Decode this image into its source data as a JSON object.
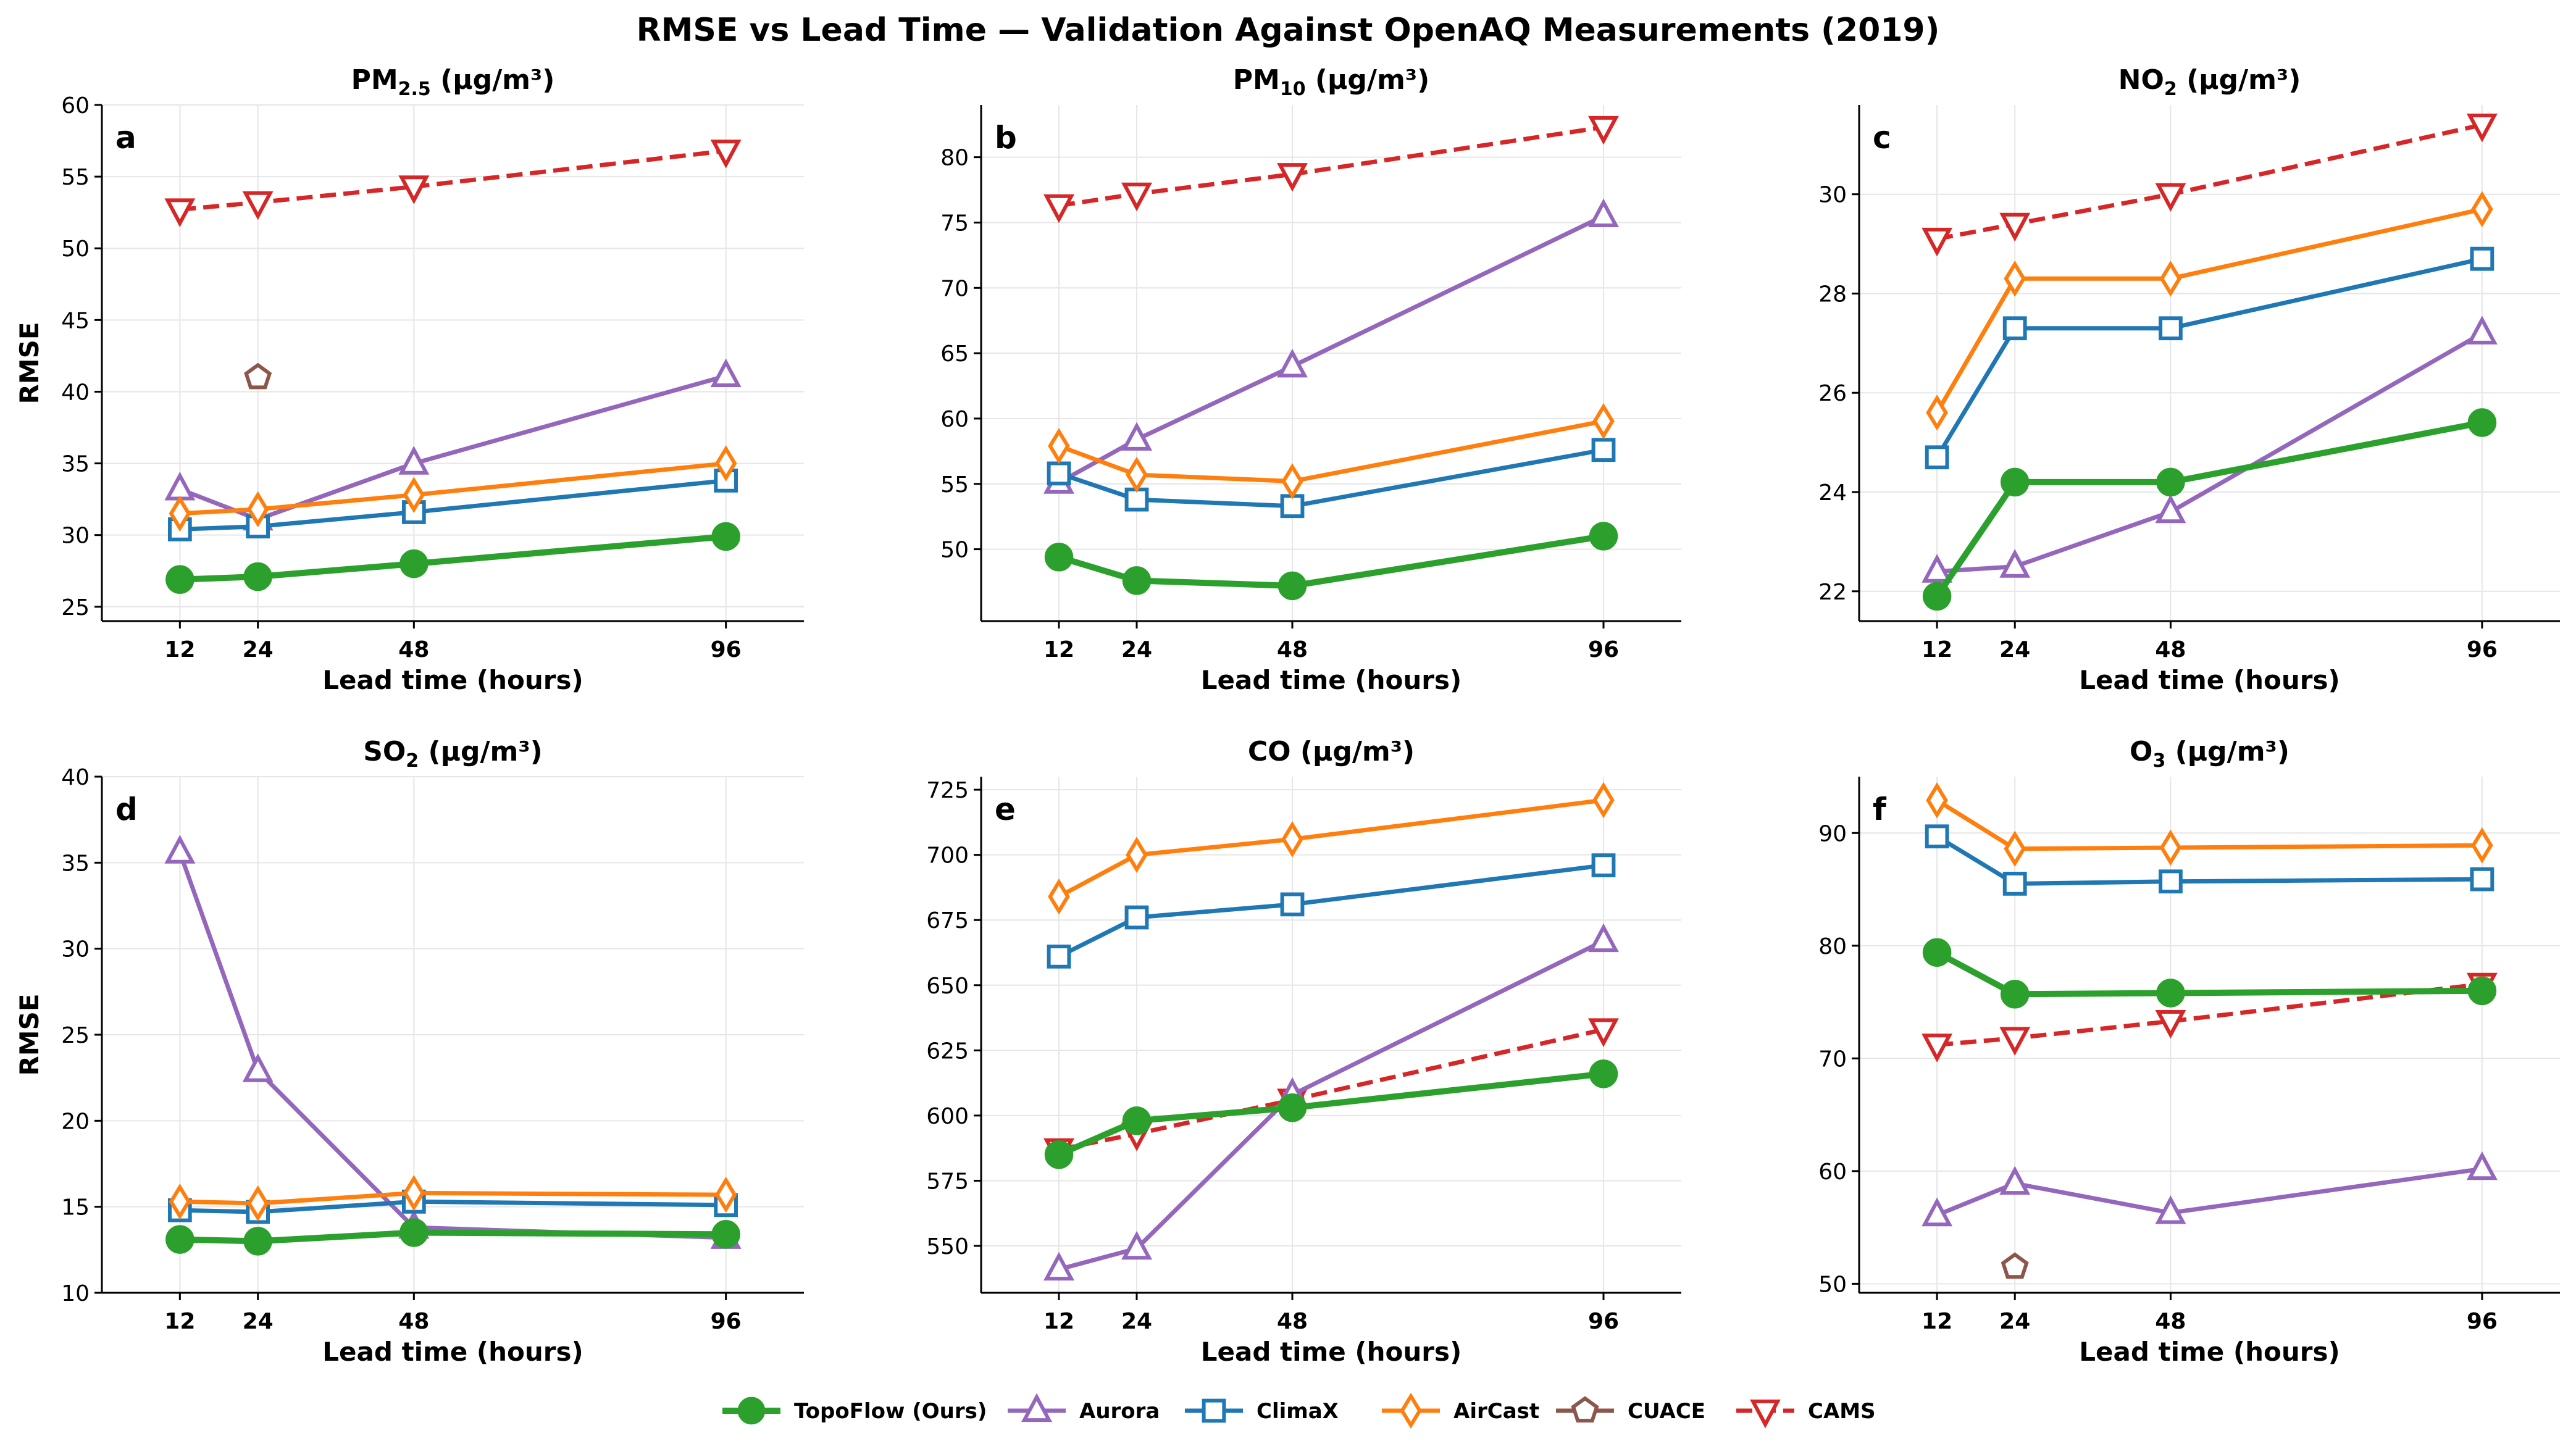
{
  "figure": {
    "title": "RMSE vs Lead Time — Validation Against OpenAQ Measurements (2019)"
  },
  "legend": {
    "entries": [
      {
        "key": "topoflow",
        "label": "TopoFlow (Ours)"
      },
      {
        "key": "aurora",
        "label": "Aurora"
      },
      {
        "key": "climax",
        "label": "ClimaX"
      },
      {
        "key": "aircast",
        "label": "AirCast"
      },
      {
        "key": "cuace",
        "label": "CUACE"
      },
      {
        "key": "cams",
        "label": "CAMS"
      }
    ]
  },
  "styles": {
    "topoflow": {
      "color": "#2ca02c",
      "marker": "circle",
      "dashed": false,
      "filled": true
    },
    "aurora": {
      "color": "#9467bd",
      "marker": "triangle-up",
      "dashed": false,
      "filled": false
    },
    "climax": {
      "color": "#1f77b4",
      "marker": "square",
      "dashed": false,
      "filled": false
    },
    "aircast": {
      "color": "#ff7f0e",
      "marker": "diamond",
      "dashed": false,
      "filled": false
    },
    "cuace": {
      "color": "#8c564b",
      "marker": "pentagon",
      "dashed": false,
      "filled": false
    },
    "cams": {
      "color": "#d62728",
      "marker": "triangle-down",
      "dashed": true,
      "filled": false
    }
  },
  "chart_data": [
    {
      "type": "line",
      "panel": "a",
      "title": {
        "base": "PM",
        "sub": "2.5",
        "unit": " (µg/m³)"
      },
      "xlabel": "Lead time (hours)",
      "ylabel": "RMSE",
      "x": [
        12,
        24,
        48,
        96
      ],
      "xlim": [
        0,
        108
      ],
      "ylim": [
        24,
        60
      ],
      "yticks": [
        25,
        30,
        35,
        40,
        45,
        50,
        55,
        60
      ],
      "series": [
        {
          "key": "topoflow",
          "name": "TopoFlow (Ours)",
          "x": [
            12,
            24,
            48,
            96
          ],
          "values": [
            26.9,
            27.1,
            28.0,
            29.9
          ]
        },
        {
          "key": "aurora",
          "name": "Aurora",
          "x": [
            12,
            24,
            48,
            96
          ],
          "values": [
            33.2,
            31.1,
            35.0,
            41.1
          ]
        },
        {
          "key": "climax",
          "name": "ClimaX",
          "x": [
            12,
            24,
            48,
            96
          ],
          "values": [
            30.4,
            30.6,
            31.6,
            33.8
          ]
        },
        {
          "key": "aircast",
          "name": "AirCast",
          "x": [
            12,
            24,
            48,
            96
          ],
          "values": [
            31.5,
            31.8,
            32.8,
            35.0
          ]
        },
        {
          "key": "cuace",
          "name": "CUACE",
          "x": [
            24
          ],
          "values": [
            41.0
          ]
        },
        {
          "key": "cams",
          "name": "CAMS",
          "x": [
            12,
            24,
            48,
            96
          ],
          "values": [
            52.7,
            53.2,
            54.3,
            56.8
          ]
        }
      ]
    },
    {
      "type": "line",
      "panel": "b",
      "title": {
        "base": "PM",
        "sub": "10",
        "unit": " (µg/m³)"
      },
      "xlabel": "Lead time (hours)",
      "ylabel": "",
      "x": [
        12,
        24,
        48,
        96
      ],
      "xlim": [
        0,
        108
      ],
      "ylim": [
        44.5,
        84
      ],
      "yticks": [
        50,
        55,
        60,
        65,
        70,
        75,
        80
      ],
      "series": [
        {
          "key": "topoflow",
          "name": "TopoFlow (Ours)",
          "x": [
            12,
            24,
            48,
            96
          ],
          "values": [
            49.4,
            47.6,
            47.2,
            51.0
          ]
        },
        {
          "key": "aurora",
          "name": "Aurora",
          "x": [
            12,
            24,
            48,
            96
          ],
          "values": [
            55.1,
            58.4,
            64.0,
            75.5
          ]
        },
        {
          "key": "climax",
          "name": "ClimaX",
          "x": [
            12,
            24,
            48,
            96
          ],
          "values": [
            55.8,
            53.8,
            53.3,
            57.6
          ]
        },
        {
          "key": "aircast",
          "name": "AirCast",
          "x": [
            12,
            24,
            48,
            96
          ],
          "values": [
            57.9,
            55.7,
            55.2,
            59.8
          ]
        },
        {
          "key": "cams",
          "name": "CAMS",
          "x": [
            12,
            24,
            48,
            96
          ],
          "values": [
            76.3,
            77.2,
            78.7,
            82.3
          ]
        }
      ]
    },
    {
      "type": "line",
      "panel": "c",
      "title": {
        "base": "NO",
        "sub": "2",
        "unit": " (µg/m³)"
      },
      "xlabel": "Lead time (hours)",
      "ylabel": "",
      "x": [
        12,
        24,
        48,
        96
      ],
      "xlim": [
        0,
        108
      ],
      "ylim": [
        21.4,
        31.8
      ],
      "yticks": [
        22,
        24,
        26,
        28,
        30
      ],
      "series": [
        {
          "key": "topoflow",
          "name": "TopoFlow (Ours)",
          "x": [
            12,
            24,
            48,
            96
          ],
          "values": [
            21.9,
            24.2,
            24.2,
            25.4
          ]
        },
        {
          "key": "aurora",
          "name": "Aurora",
          "x": [
            12,
            24,
            48,
            96
          ],
          "values": [
            22.4,
            22.5,
            23.6,
            27.2
          ]
        },
        {
          "key": "climax",
          "name": "ClimaX",
          "x": [
            12,
            24,
            48,
            96
          ],
          "values": [
            24.7,
            27.3,
            27.3,
            28.7
          ]
        },
        {
          "key": "aircast",
          "name": "AirCast",
          "x": [
            12,
            24,
            48,
            96
          ],
          "values": [
            25.6,
            28.3,
            28.3,
            29.7
          ]
        },
        {
          "key": "cams",
          "name": "CAMS",
          "x": [
            12,
            24,
            48,
            96
          ],
          "values": [
            29.1,
            29.4,
            30.0,
            31.4
          ]
        }
      ]
    },
    {
      "type": "line",
      "panel": "d",
      "title": {
        "base": "SO",
        "sub": "2",
        "unit": " (µg/m³)"
      },
      "xlabel": "Lead time (hours)",
      "ylabel": "RMSE",
      "x": [
        12,
        24,
        48,
        96
      ],
      "xlim": [
        0,
        108
      ],
      "ylim": [
        10,
        40
      ],
      "yticks": [
        10,
        15,
        20,
        25,
        30,
        35,
        40
      ],
      "series": [
        {
          "key": "topoflow",
          "name": "TopoFlow (Ours)",
          "x": [
            12,
            24,
            48,
            96
          ],
          "values": [
            13.1,
            13.0,
            13.5,
            13.4
          ]
        },
        {
          "key": "aurora",
          "name": "Aurora",
          "x": [
            12,
            24,
            48,
            96
          ],
          "values": [
            35.6,
            22.9,
            13.8,
            13.2
          ]
        },
        {
          "key": "climax",
          "name": "ClimaX",
          "x": [
            12,
            24,
            48,
            96
          ],
          "values": [
            14.8,
            14.7,
            15.3,
            15.1
          ]
        },
        {
          "key": "aircast",
          "name": "AirCast",
          "x": [
            12,
            24,
            48,
            96
          ],
          "values": [
            15.3,
            15.2,
            15.8,
            15.7
          ]
        }
      ]
    },
    {
      "type": "line",
      "panel": "e",
      "title": {
        "base": "CO",
        "sub": "",
        "unit": " (µg/m³)"
      },
      "xlabel": "Lead time (hours)",
      "ylabel": "",
      "x": [
        12,
        24,
        48,
        96
      ],
      "xlim": [
        0,
        108
      ],
      "ylim": [
        532,
        730
      ],
      "yticks": [
        550,
        575,
        600,
        625,
        650,
        675,
        700,
        725
      ],
      "series": [
        {
          "key": "topoflow",
          "name": "TopoFlow (Ours)",
          "x": [
            12,
            24,
            48,
            96
          ],
          "values": [
            585,
            598,
            603,
            616
          ]
        },
        {
          "key": "aurora",
          "name": "Aurora",
          "x": [
            12,
            24,
            48,
            96
          ],
          "values": [
            541,
            549,
            608,
            667
          ]
        },
        {
          "key": "climax",
          "name": "ClimaX",
          "x": [
            12,
            24,
            48,
            96
          ],
          "values": [
            661,
            676,
            681,
            696
          ]
        },
        {
          "key": "aircast",
          "name": "AirCast",
          "x": [
            12,
            24,
            48,
            96
          ],
          "values": [
            684,
            700,
            706,
            721
          ]
        },
        {
          "key": "cams",
          "name": "CAMS",
          "x": [
            12,
            24,
            48,
            96
          ],
          "values": [
            587,
            593,
            606,
            633
          ]
        }
      ]
    },
    {
      "type": "line",
      "panel": "f",
      "title": {
        "base": "O",
        "sub": "3",
        "unit": " (µg/m³)"
      },
      "xlabel": "Lead time (hours)",
      "ylabel": "",
      "x": [
        12,
        24,
        48,
        96
      ],
      "xlim": [
        0,
        108
      ],
      "ylim": [
        49.2,
        95
      ],
      "yticks": [
        50,
        60,
        70,
        80,
        90
      ],
      "series": [
        {
          "key": "topoflow",
          "name": "TopoFlow (Ours)",
          "x": [
            12,
            24,
            48,
            96
          ],
          "values": [
            79.4,
            75.7,
            75.8,
            76.0
          ]
        },
        {
          "key": "aurora",
          "name": "Aurora",
          "x": [
            12,
            24,
            48,
            96
          ],
          "values": [
            56.1,
            58.9,
            56.3,
            60.2
          ]
        },
        {
          "key": "climax",
          "name": "ClimaX",
          "x": [
            12,
            24,
            48,
            96
          ],
          "values": [
            89.7,
            85.5,
            85.7,
            85.9
          ]
        },
        {
          "key": "aircast",
          "name": "AirCast",
          "x": [
            12,
            24,
            48,
            96
          ],
          "values": [
            92.9,
            88.6,
            88.7,
            88.9
          ]
        },
        {
          "key": "cuace",
          "name": "CUACE",
          "x": [
            24
          ],
          "values": [
            51.5
          ]
        },
        {
          "key": "cams",
          "name": "CAMS",
          "x": [
            12,
            24,
            48,
            96
          ],
          "values": [
            71.2,
            71.8,
            73.3,
            76.6
          ]
        }
      ]
    }
  ]
}
